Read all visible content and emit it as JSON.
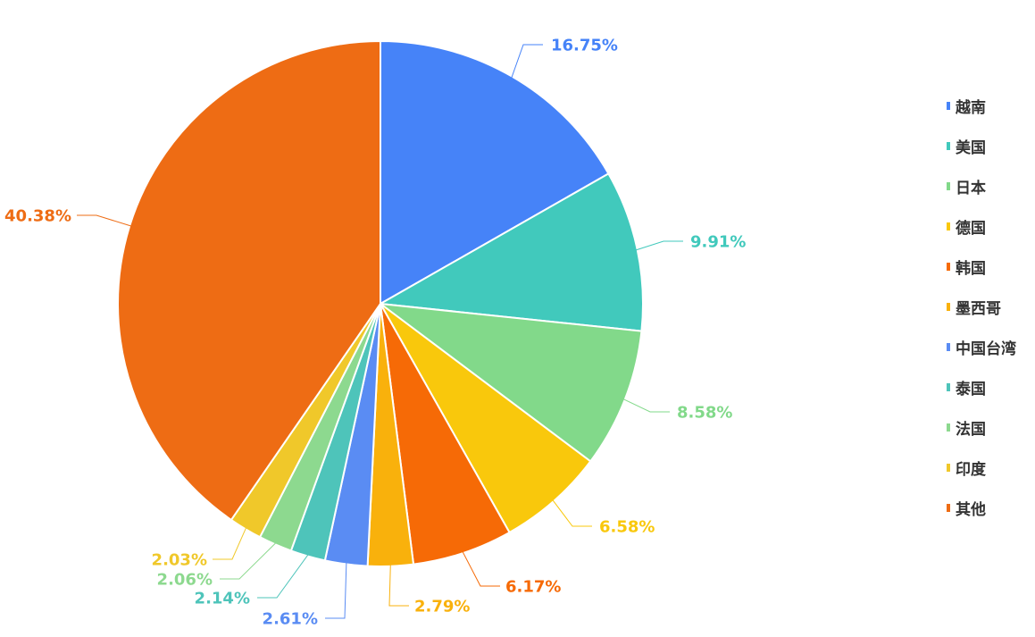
{
  "chart_data": {
    "type": "pie",
    "categories": [
      "越南",
      "美国",
      "日本",
      "德国",
      "韩国",
      "墨西哥",
      "中国台湾",
      "泰国",
      "法国",
      "印度",
      "其他"
    ],
    "values": [
      16.75,
      9.91,
      8.58,
      6.58,
      6.17,
      2.79,
      2.61,
      2.14,
      2.06,
      2.03,
      40.38
    ],
    "labels": [
      "16.75%",
      "9.91%",
      "8.58%",
      "6.58%",
      "6.17%",
      "2.79%",
      "2.61%",
      "2.14%",
      "2.06%",
      "2.03%",
      "40.38%"
    ],
    "colors": [
      "#4683F8",
      "#41C9BC",
      "#82D98A",
      "#F9C80C",
      "#F66A06",
      "#F9B10C",
      "#5A8CF3",
      "#4EC4BA",
      "#8DD98F",
      "#F0C82A",
      "#EE6C14"
    ],
    "title": "",
    "legend_position": "right"
  }
}
